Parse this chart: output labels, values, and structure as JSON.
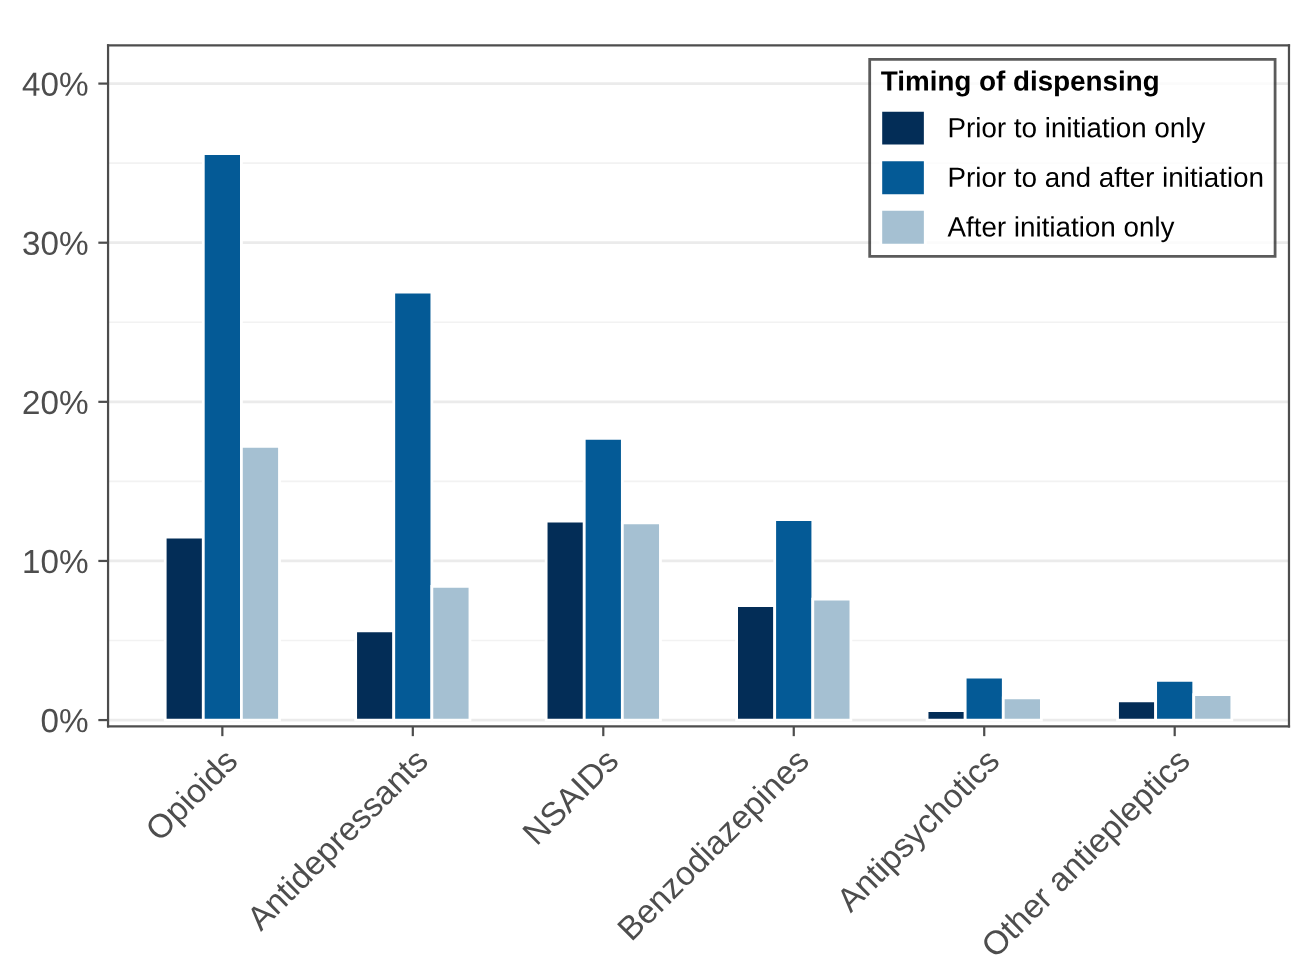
{
  "chart_data": {
    "type": "bar",
    "legend_title": "Timing of dispensing",
    "categories": [
      "Opioids",
      "Antidepressants",
      "NSAIDs",
      "Benzodiazepines",
      "Antipsychotics",
      "Other antiepleptics"
    ],
    "series": [
      {
        "name": "Prior to initiation only",
        "color": "#032d57",
        "values": [
          11.5,
          5.6,
          12.5,
          7.2,
          0.6,
          1.2
        ]
      },
      {
        "name": "Prior to and after initiation",
        "color": "#045a96",
        "values": [
          35.6,
          26.9,
          17.7,
          12.6,
          2.7,
          2.5
        ]
      },
      {
        "name": "After initiation only",
        "color": "#a5c0d2",
        "values": [
          17.2,
          8.4,
          12.4,
          7.6,
          1.4,
          1.6
        ]
      }
    ],
    "ylim": [
      -0.4,
      42.4
    ],
    "yticks": [
      {
        "value": 0,
        "label": "0%"
      },
      {
        "value": 10,
        "label": "10%"
      },
      {
        "value": 20,
        "label": "20%"
      },
      {
        "value": 30,
        "label": "30%"
      },
      {
        "value": 40,
        "label": "40%"
      }
    ],
    "grid": "y",
    "legend": "top right"
  }
}
